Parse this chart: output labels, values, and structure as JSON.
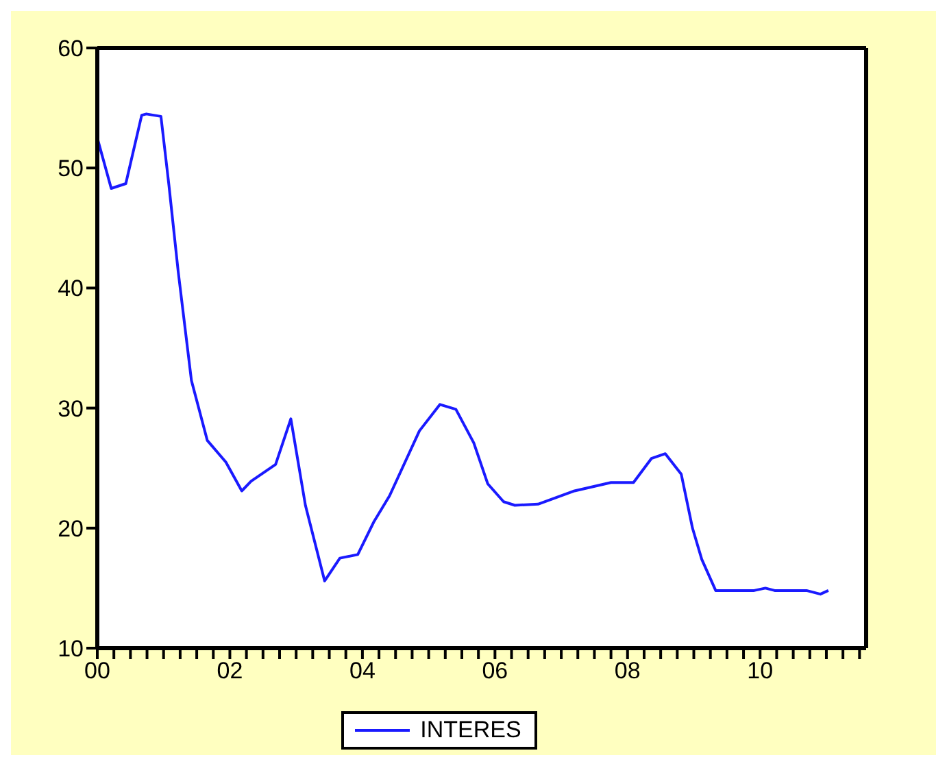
{
  "chart_data": {
    "type": "line",
    "x": [
      2000.0,
      2000.21,
      2000.43,
      2000.67,
      2000.74,
      2000.96,
      2001.08,
      2001.22,
      2001.42,
      2001.66,
      2001.94,
      2002.18,
      2002.32,
      2002.69,
      2002.92,
      2003.14,
      2003.43,
      2003.66,
      2003.93,
      2004.17,
      2004.41,
      2004.86,
      2005.17,
      2005.41,
      2005.68,
      2005.89,
      2006.13,
      2006.3,
      2006.65,
      2007.2,
      2007.75,
      2008.09,
      2008.36,
      2008.57,
      2008.81,
      2008.98,
      2009.12,
      2009.33,
      2009.91,
      2010.08,
      2010.22,
      2010.7,
      2010.91,
      2011.03
    ],
    "series": [
      {
        "name": "INTERES",
        "color": "#1a1aff",
        "values": [
          52.5,
          48.3,
          48.7,
          54.4,
          54.5,
          54.3,
          48.6,
          41.4,
          32.3,
          27.3,
          25.5,
          23.1,
          23.9,
          25.3,
          29.1,
          21.9,
          15.6,
          17.5,
          17.8,
          20.5,
          22.7,
          28.1,
          30.3,
          29.9,
          27.1,
          23.7,
          22.2,
          21.9,
          22.0,
          23.1,
          23.8,
          23.8,
          25.8,
          26.2,
          24.5,
          20.0,
          17.4,
          14.8,
          14.8,
          15.0,
          14.8,
          14.8,
          14.5,
          14.8
        ]
      }
    ],
    "xlim": [
      2000,
      2011.6
    ],
    "xticks": [
      {
        "value": 2000,
        "label": "00"
      },
      {
        "value": 2000.25,
        "label": null
      },
      {
        "value": 2000.5,
        "label": null
      },
      {
        "value": 2000.75,
        "label": null
      },
      {
        "value": 2001,
        "label": null
      },
      {
        "value": 2001.25,
        "label": null
      },
      {
        "value": 2001.5,
        "label": null
      },
      {
        "value": 2001.75,
        "label": null
      },
      {
        "value": 2002,
        "label": "02"
      },
      {
        "value": 2002.25,
        "label": null
      },
      {
        "value": 2002.5,
        "label": null
      },
      {
        "value": 2002.75,
        "label": null
      },
      {
        "value": 2003,
        "label": null
      },
      {
        "value": 2003.25,
        "label": null
      },
      {
        "value": 2003.5,
        "label": null
      },
      {
        "value": 2003.75,
        "label": null
      },
      {
        "value": 2004,
        "label": "04"
      },
      {
        "value": 2004.25,
        "label": null
      },
      {
        "value": 2004.5,
        "label": null
      },
      {
        "value": 2004.75,
        "label": null
      },
      {
        "value": 2005,
        "label": null
      },
      {
        "value": 2005.25,
        "label": null
      },
      {
        "value": 2005.5,
        "label": null
      },
      {
        "value": 2005.75,
        "label": null
      },
      {
        "value": 2006,
        "label": "06"
      },
      {
        "value": 2006.25,
        "label": null
      },
      {
        "value": 2006.5,
        "label": null
      },
      {
        "value": 2006.75,
        "label": null
      },
      {
        "value": 2007,
        "label": null
      },
      {
        "value": 2007.25,
        "label": null
      },
      {
        "value": 2007.5,
        "label": null
      },
      {
        "value": 2007.75,
        "label": null
      },
      {
        "value": 2008,
        "label": "08"
      },
      {
        "value": 2008.25,
        "label": null
      },
      {
        "value": 2008.5,
        "label": null
      },
      {
        "value": 2008.75,
        "label": null
      },
      {
        "value": 2009,
        "label": null
      },
      {
        "value": 2009.25,
        "label": null
      },
      {
        "value": 2009.5,
        "label": null
      },
      {
        "value": 2009.75,
        "label": null
      },
      {
        "value": 2010,
        "label": "10"
      },
      {
        "value": 2010.25,
        "label": null
      },
      {
        "value": 2010.5,
        "label": null
      },
      {
        "value": 2010.75,
        "label": null
      },
      {
        "value": 2011,
        "label": null
      },
      {
        "value": 2011.25,
        "label": null
      },
      {
        "value": 2011.5,
        "label": null
      }
    ],
    "ylim": [
      10,
      60
    ],
    "yticks": [
      10,
      20,
      30,
      40,
      50,
      60
    ],
    "grid": false,
    "legend": "bottom",
    "marker": "none",
    "line_style": "solid"
  }
}
